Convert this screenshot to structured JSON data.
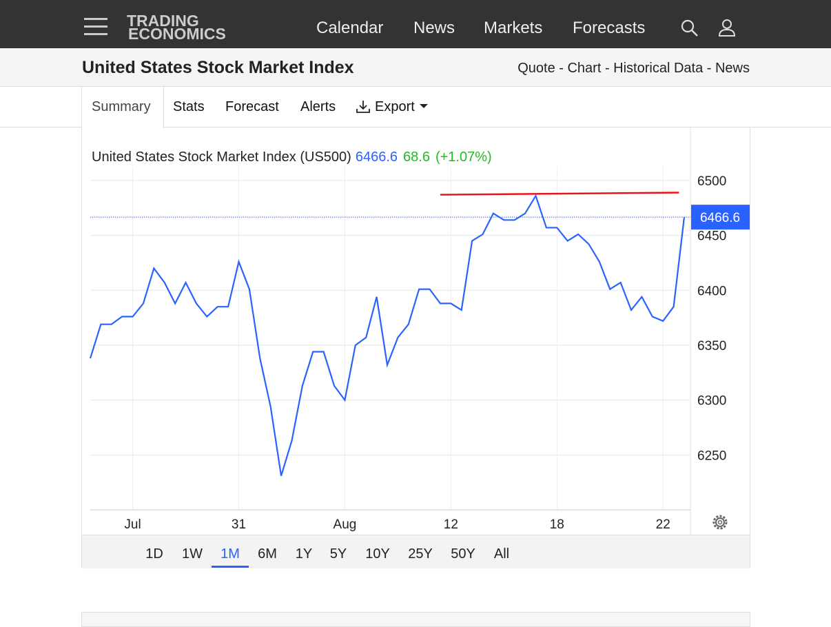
{
  "nav": {
    "logo": [
      "TRADING",
      "ECONOMICS"
    ],
    "links": [
      "Calendar",
      "News",
      "Markets",
      "Forecasts"
    ]
  },
  "header": {
    "title": "United States Stock Market Index",
    "links": "Quote - Chart - Historical Data - News"
  },
  "tabs": [
    "Summary",
    "Stats",
    "Forecast",
    "Alerts",
    "Export"
  ],
  "chart": {
    "type": "line",
    "title": "United States Stock Market Index (US500)",
    "price": 6466.6,
    "change": 68.6,
    "change_label": "(+1.07%)",
    "color": "#2962ff",
    "x": [
      0,
      1,
      2,
      3,
      4,
      5,
      6,
      7,
      8,
      9,
      10,
      11,
      12,
      13,
      14,
      15,
      16,
      17,
      18,
      19,
      20,
      21,
      22,
      23,
      24,
      25,
      26,
      27,
      28,
      29,
      30,
      31,
      32,
      33,
      34,
      35,
      36,
      37,
      38,
      39,
      40,
      41,
      42,
      43,
      44,
      45,
      46,
      47,
      48,
      49,
      50,
      51,
      52,
      53,
      54,
      55,
      56
    ],
    "values": [
      6338,
      6369,
      6369,
      6376,
      6376,
      6388,
      6420,
      6407,
      6388,
      6407,
      6388,
      6376,
      6385,
      6385,
      6426,
      6401,
      6338,
      6294,
      6231,
      6263,
      6313,
      6344,
      6344,
      6313,
      6300,
      6350,
      6357,
      6394,
      6332,
      6357,
      6369,
      6401,
      6401,
      6388,
      6388,
      6382,
      6445,
      6451,
      6470,
      6464,
      6464,
      6470,
      6486,
      6457,
      6457,
      6445,
      6451,
      6442,
      6426,
      6401,
      6407,
      6382,
      6394,
      6376,
      6372,
      6385,
      6466.6
    ],
    "xlim": [
      0,
      56
    ],
    "xticks": [
      {
        "value": 4,
        "label": "Jul"
      },
      {
        "value": 14,
        "label": "31"
      },
      {
        "value": 24,
        "label": "Aug"
      },
      {
        "value": 34,
        "label": "12"
      },
      {
        "value": 44,
        "label": "18"
      },
      {
        "value": 54,
        "label": "22"
      }
    ],
    "ylim": [
      6200,
      6512.5
    ],
    "yticks": [
      6250,
      6300,
      6350,
      6400,
      6450,
      6500
    ],
    "trend_line": {
      "color": "#e8141b",
      "x": [
        33,
        55.5
      ],
      "y": [
        6487,
        6489
      ]
    }
  },
  "ranges": [
    "1D",
    "1W",
    "1M",
    "6M",
    "1Y",
    "5Y",
    "10Y",
    "25Y",
    "50Y",
    "All"
  ],
  "selected_range": 2
}
